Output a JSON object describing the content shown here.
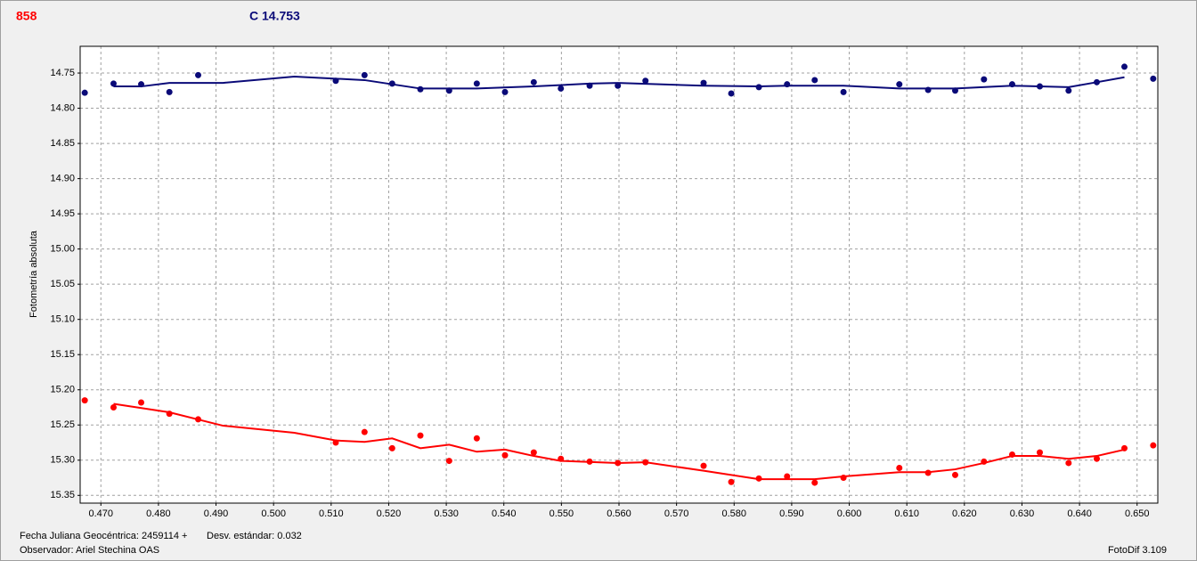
{
  "chart_data": {
    "type": "scatter",
    "title": "858",
    "subtitle": "C 14.753",
    "ylabel": "Fotometría absoluta",
    "annotations": [
      "Fecha Juliana Geocéntrica: 2459114 +",
      "Desv. estándar: 0.032",
      "Observador: Ariel Stechina OAS",
      "FotoDif 3.109"
    ],
    "xlim": [
      0.4664,
      0.6536
    ],
    "ylim": [
      14.712,
      15.361
    ],
    "y_inverted": true,
    "grid": true,
    "xticks": [
      {
        "value": 0.47,
        "label": "0.470"
      },
      {
        "value": 0.48,
        "label": "0.480"
      },
      {
        "value": 0.49,
        "label": "0.490"
      },
      {
        "value": 0.5,
        "label": "0.500"
      },
      {
        "value": 0.51,
        "label": "0.510"
      },
      {
        "value": 0.52,
        "label": "0.520"
      },
      {
        "value": 0.53,
        "label": "0.530"
      },
      {
        "value": 0.54,
        "label": "0.540"
      },
      {
        "value": 0.55,
        "label": "0.550"
      },
      {
        "value": 0.56,
        "label": "0.560"
      },
      {
        "value": 0.57,
        "label": "0.570"
      },
      {
        "value": 0.58,
        "label": "0.580"
      },
      {
        "value": 0.59,
        "label": "0.590"
      },
      {
        "value": 0.6,
        "label": "0.600"
      },
      {
        "value": 0.61,
        "label": "0.610"
      },
      {
        "value": 0.62,
        "label": "0.620"
      },
      {
        "value": 0.63,
        "label": "0.630"
      },
      {
        "value": 0.64,
        "label": "0.640"
      },
      {
        "value": 0.65,
        "label": "0.650"
      }
    ],
    "yticks": [
      14.75,
      {
        "value": 14.8,
        "label": "14.80"
      },
      14.85,
      {
        "value": 14.9,
        "label": "14.90"
      },
      14.95,
      {
        "value": 15.0,
        "label": "15.00"
      },
      15.05,
      {
        "value": 15.1,
        "label": "15.10"
      },
      15.15,
      {
        "value": 15.2,
        "label": "15.20"
      },
      15.25,
      {
        "value": 15.3,
        "label": "15.30"
      },
      15.35
    ],
    "series": [
      {
        "mode": "points",
        "color": "#0a0a78",
        "x": [
          0.4672,
          0.4722,
          0.477,
          0.4819,
          0.4869,
          0.5108,
          0.5158,
          0.5206,
          0.5255,
          0.5305,
          0.5353,
          0.5402,
          0.5452,
          0.5499,
          0.5549,
          0.5598,
          0.5646,
          0.5747,
          0.5795,
          0.5843,
          0.5892,
          0.594,
          0.599,
          0.6087,
          0.6137,
          0.6184,
          0.6234,
          0.6283,
          0.6331,
          0.6381,
          0.643,
          0.6478,
          0.6528
        ],
        "values": [
          14.778,
          14.765,
          14.766,
          14.777,
          14.753,
          14.761,
          14.753,
          14.765,
          14.773,
          14.775,
          14.765,
          14.777,
          14.763,
          14.772,
          14.768,
          14.768,
          14.761,
          14.764,
          14.779,
          14.77,
          14.766,
          14.76,
          14.777,
          14.766,
          14.774,
          14.775,
          14.759,
          14.766,
          14.769,
          14.775,
          14.763,
          14.741,
          14.758
        ]
      },
      {
        "mode": "line",
        "color": "#0a0a78",
        "x": [
          0.4722,
          0.477,
          0.4819,
          0.4912,
          0.5036,
          0.5108,
          0.5158,
          0.5255,
          0.5353,
          0.5452,
          0.5549,
          0.5598,
          0.5747,
          0.5843,
          0.5892,
          0.599,
          0.6087,
          0.6184,
          0.6283,
          0.6381,
          0.643,
          0.6478
        ],
        "values": [
          14.769,
          14.769,
          14.764,
          14.764,
          14.755,
          14.758,
          14.76,
          14.772,
          14.772,
          14.769,
          14.765,
          14.764,
          14.768,
          14.769,
          14.768,
          14.768,
          14.772,
          14.772,
          14.768,
          14.77,
          14.763,
          14.756
        ]
      },
      {
        "mode": "points",
        "color": "#ff0000",
        "x": [
          0.4672,
          0.4722,
          0.477,
          0.4819,
          0.4869,
          0.5108,
          0.5158,
          0.5206,
          0.5255,
          0.5305,
          0.5353,
          0.5402,
          0.5452,
          0.5499,
          0.5549,
          0.5598,
          0.5646,
          0.5747,
          0.5795,
          0.5843,
          0.5892,
          0.594,
          0.599,
          0.6087,
          0.6137,
          0.6184,
          0.6234,
          0.6283,
          0.6331,
          0.6381,
          0.643,
          0.6478,
          0.6528
        ],
        "values": [
          15.215,
          15.225,
          15.218,
          15.234,
          15.242,
          15.275,
          15.26,
          15.283,
          15.265,
          15.301,
          15.269,
          15.293,
          15.289,
          15.298,
          15.302,
          15.304,
          15.303,
          15.308,
          15.331,
          15.326,
          15.323,
          15.332,
          15.325,
          15.311,
          15.318,
          15.321,
          15.302,
          15.292,
          15.289,
          15.304,
          15.298,
          15.283,
          15.279
        ]
      },
      {
        "mode": "line",
        "color": "#ff0000",
        "x": [
          0.4722,
          0.4819,
          0.4912,
          0.5036,
          0.5108,
          0.5158,
          0.5206,
          0.5255,
          0.5305,
          0.5353,
          0.5402,
          0.5452,
          0.5499,
          0.5598,
          0.5646,
          0.5747,
          0.5843,
          0.594,
          0.599,
          0.6087,
          0.6137,
          0.6184,
          0.6234,
          0.6283,
          0.6331,
          0.6381,
          0.643,
          0.6478
        ],
        "values": [
          15.22,
          15.232,
          15.251,
          15.261,
          15.272,
          15.274,
          15.269,
          15.283,
          15.278,
          15.288,
          15.285,
          15.294,
          15.301,
          15.304,
          15.303,
          15.315,
          15.327,
          15.327,
          15.323,
          15.317,
          15.317,
          15.313,
          15.304,
          15.294,
          15.294,
          15.298,
          15.294,
          15.285
        ]
      }
    ]
  }
}
